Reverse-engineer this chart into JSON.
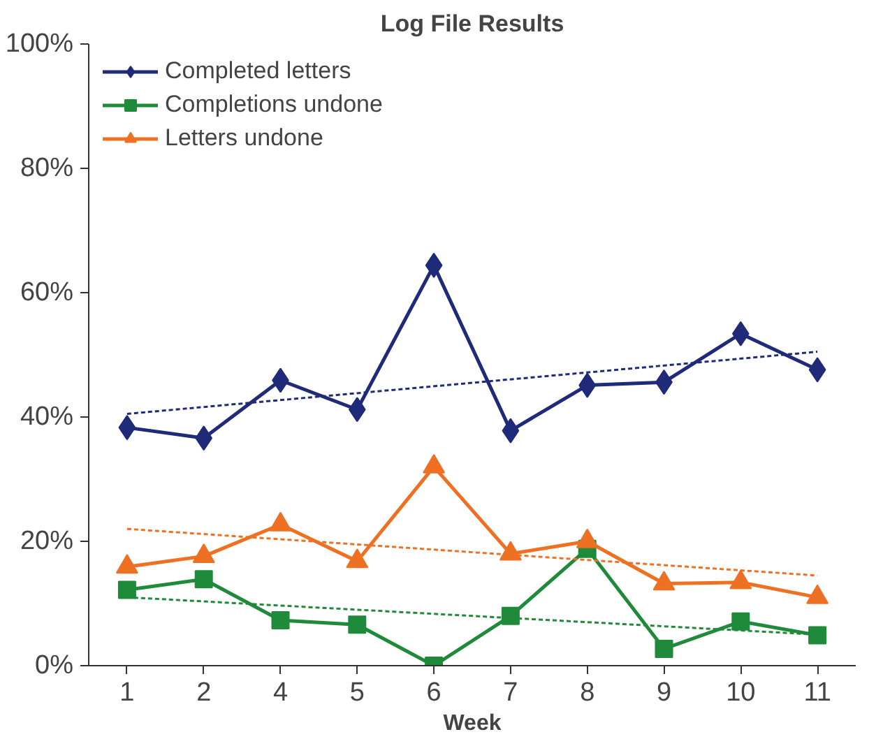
{
  "chart_data": {
    "type": "line",
    "title": "Log File Results",
    "xlabel": "Week",
    "categories": [
      "1",
      "2",
      "4",
      "5",
      "6",
      "7",
      "8",
      "9",
      "10",
      "11"
    ],
    "series": [
      {
        "name": "Completed letters",
        "color": "#1f2a78",
        "marker": "diamond",
        "values": [
          38.3,
          36.6,
          45.9,
          41.2,
          64.4,
          37.8,
          45.1,
          45.6,
          53.4,
          47.6
        ]
      },
      {
        "name": "Completions undone",
        "color": "#1e8a3a",
        "marker": "square",
        "values": [
          12.2,
          13.9,
          7.3,
          6.6,
          0,
          8.0,
          18.8,
          2.7,
          7.1,
          4.9
        ]
      },
      {
        "name": "Letters undone",
        "color": "#ee7023",
        "marker": "triangle",
        "values": [
          15.9,
          17.6,
          22.7,
          16.8,
          32.0,
          18.0,
          20.0,
          13.2,
          13.4,
          11.0
        ]
      },
      {
        "type": "line",
        "color": "#1f2a78",
        "line_style": "dotted",
        "marker": "none",
        "x": [
          "1",
          "11"
        ],
        "values": [
          40.5,
          50.5
        ]
      },
      {
        "type": "line",
        "color": "#1e8a3a",
        "line_style": "dotted",
        "marker": "none",
        "x": [
          "1",
          "11"
        ],
        "values": [
          11.0,
          5.0
        ]
      },
      {
        "type": "line",
        "color": "#ee7023",
        "line_style": "dotted",
        "marker": "none",
        "x": [
          "1",
          "11"
        ],
        "values": [
          22.0,
          14.5
        ]
      }
    ],
    "ylim": [
      0,
      100
    ],
    "yticks": [
      {
        "value": 0,
        "label": "0%"
      },
      {
        "value": 20,
        "label": "20%"
      },
      {
        "value": 40,
        "label": "40%"
      },
      {
        "value": 60,
        "label": "60%"
      },
      {
        "value": 80,
        "label": "80%"
      },
      {
        "value": 100,
        "label": "100%"
      }
    ],
    "grid": false,
    "legend": "top left",
    "line_style": "solid"
  }
}
